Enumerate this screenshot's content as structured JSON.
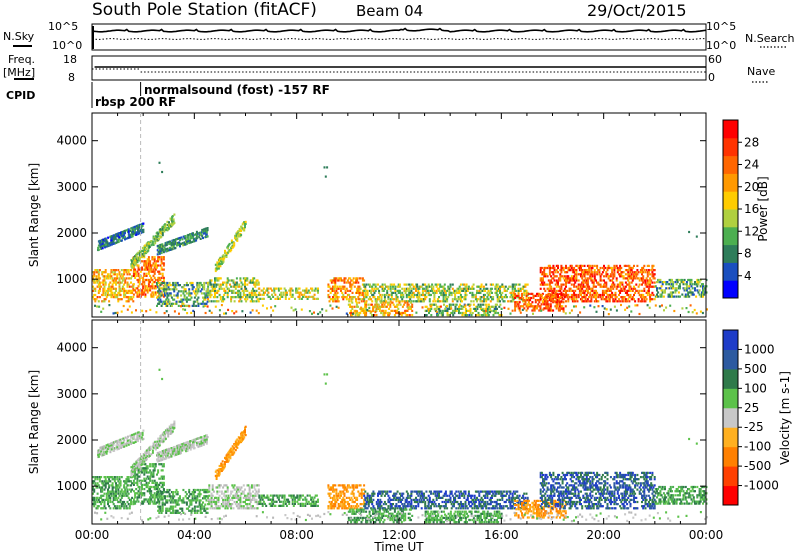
{
  "header": {
    "station": "South Pole Station (fitACF)",
    "beam": "Beam 04",
    "date": "29/Oct/2015"
  },
  "top_panels": {
    "nsky_label": "N.Sky",
    "nsearch_label": "N.Search",
    "nsky_ticks": [
      "10^5",
      "10^0"
    ],
    "nsearch_ticks": [
      "10^5",
      "10^0"
    ],
    "freq_label": "Freq.",
    "freq_unit": "[MHz]",
    "freq_ticks": [
      "18",
      "8"
    ],
    "nave_label": "Nave",
    "nave_ticks": [
      "60",
      "0"
    ],
    "cpid_label": "CPID",
    "cpid_segments": [
      {
        "label": "rbsp 200 RF",
        "start_hour": 0.0
      },
      {
        "label": "normalsound (fost) -157 RF",
        "start_hour": 1.9
      }
    ]
  },
  "chart_data": [
    {
      "type": "heatmap",
      "name": "power",
      "xlabel": "",
      "ylabel": "Slant Range [km]",
      "xlim_hours": [
        0,
        24
      ],
      "ylim": [
        180,
        4600
      ],
      "yticks": [
        1000,
        2000,
        3000,
        4000
      ],
      "colorbar": {
        "label": "Power [dB]",
        "range": [
          0,
          32
        ],
        "ticks": [
          "4",
          "8",
          "12",
          "16",
          "20",
          "24",
          "28"
        ],
        "colors": [
          "#0000ff",
          "#1a4fbf",
          "#2e7d5a",
          "#4caf50",
          "#b0d040",
          "#ffcc00",
          "#ff9900",
          "#ff6600",
          "#ff3300",
          "#ff0000"
        ]
      }
    },
    {
      "type": "heatmap",
      "name": "velocity",
      "xlabel": "Time UT",
      "ylabel": "Slant Range [km]",
      "xlim_hours": [
        0,
        24
      ],
      "ylim": [
        180,
        4600
      ],
      "yticks": [
        1000,
        2000,
        3000,
        4000
      ],
      "xticks": [
        "00:00",
        "04:00",
        "08:00",
        "12:00",
        "16:00",
        "20:00",
        "00:00"
      ],
      "colorbar": {
        "label": "Velocity [m s-1]",
        "ticks": [
          "1000",
          "500",
          "100",
          "25",
          "-25",
          "-100",
          "-500",
          "-1000"
        ],
        "colors": [
          "#1e3cc8",
          "#2d5aa0",
          "#2f7a4a",
          "#5cc24a",
          "#c8c8c8",
          "#ffb020",
          "#ff8000",
          "#ff4000",
          "#ff0000"
        ]
      }
    }
  ],
  "echo_regions": [
    {
      "t0": 0.0,
      "t1": 1.6,
      "r0": 500,
      "r1": 1200,
      "p": 20,
      "v": "green"
    },
    {
      "t0": 1.6,
      "t1": 2.8,
      "r0": 600,
      "r1": 1500,
      "p": 24,
      "v": "green"
    },
    {
      "t0": 2.5,
      "t1": 4.5,
      "r0": 400,
      "r1": 900,
      "p": 10,
      "v": "green"
    },
    {
      "t0": 4.5,
      "t1": 6.5,
      "r0": 500,
      "r1": 1000,
      "p": 14,
      "v": "gray"
    },
    {
      "t0": 6.5,
      "t1": 8.8,
      "r0": 550,
      "r1": 800,
      "p": 16,
      "v": "green"
    },
    {
      "t0": 9.2,
      "t1": 10.6,
      "r0": 500,
      "r1": 1000,
      "p": 22,
      "v": "orange"
    },
    {
      "t0": 10.6,
      "t1": 17.0,
      "r0": 500,
      "r1": 900,
      "p": 14,
      "v": "blue"
    },
    {
      "t0": 10.0,
      "t1": 12.5,
      "r0": 200,
      "r1": 500,
      "p": 20,
      "v": "green"
    },
    {
      "t0": 13.0,
      "t1": 16.0,
      "r0": 200,
      "r1": 450,
      "p": 12,
      "v": "green"
    },
    {
      "t0": 16.5,
      "t1": 18.5,
      "r0": 300,
      "r1": 700,
      "p": 26,
      "v": "orange"
    },
    {
      "t0": 17.5,
      "t1": 22.0,
      "r0": 500,
      "r1": 1300,
      "p": 26,
      "v": "blue"
    },
    {
      "t0": 22.0,
      "t1": 24.0,
      "r0": 600,
      "r1": 1000,
      "p": 10,
      "v": "green"
    }
  ],
  "echo_arcs": [
    {
      "t0": 1.5,
      "t1": 3.2,
      "r0": 1300,
      "r1": 2300,
      "p": 12,
      "v": "gray"
    },
    {
      "t0": 2.5,
      "t1": 4.5,
      "r0": 1600,
      "r1": 2000,
      "p": 8,
      "v": "gray"
    },
    {
      "t0": 4.8,
      "t1": 6.0,
      "r0": 1200,
      "r1": 2200,
      "p": 14,
      "v": "orange"
    },
    {
      "t0": 0.2,
      "t1": 2.0,
      "r0": 1700,
      "r1": 2100,
      "p": 6,
      "v": "gray"
    }
  ]
}
